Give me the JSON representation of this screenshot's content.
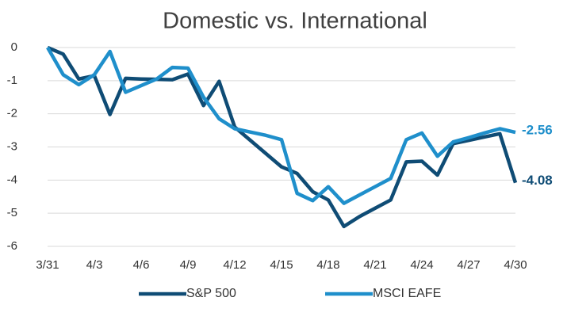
{
  "chart_data": {
    "type": "line",
    "title": "Domestic vs. International",
    "categories": [
      "3/31",
      null,
      null,
      "4/3",
      null,
      null,
      "4/6",
      null,
      null,
      "4/9",
      null,
      null,
      "4/12",
      null,
      null,
      "4/15",
      null,
      null,
      "4/18",
      null,
      null,
      "4/21",
      null,
      null,
      "4/24",
      null,
      null,
      "4/27",
      null,
      null,
      "4/30"
    ],
    "series": [
      {
        "name": "S&P 500",
        "color": "#0f4c75",
        "values": [
          0,
          -0.2,
          -0.95,
          -0.85,
          -2.02,
          -0.93,
          -0.95,
          -0.96,
          -0.97,
          -0.8,
          -1.75,
          -1.02,
          -2.4,
          -2.8,
          -3.2,
          -3.6,
          -3.8,
          -4.35,
          -4.6,
          -5.4,
          -5.1,
          -4.85,
          -4.6,
          -3.45,
          -3.43,
          -3.85,
          -2.9,
          -2.8,
          -2.7,
          -2.6,
          -4.08
        ]
      },
      {
        "name": "MSCI EAFE",
        "color": "#1f8fcb",
        "values": [
          0,
          -0.82,
          -1.12,
          -0.82,
          -0.12,
          -1.35,
          -1.15,
          -0.95,
          -0.6,
          -0.62,
          -1.5,
          -2.15,
          -2.45,
          -2.55,
          -2.65,
          -2.78,
          -4.4,
          -4.62,
          -4.2,
          -4.7,
          -4.45,
          -4.2,
          -3.95,
          -2.78,
          -2.58,
          -3.28,
          -2.85,
          -2.72,
          -2.58,
          -2.45,
          -2.56
        ]
      }
    ],
    "ylim": [
      -6,
      0
    ],
    "yticks": [
      0,
      -1,
      -2,
      -3,
      -4,
      -5,
      -6
    ],
    "grid": true,
    "legend": "bottom"
  }
}
